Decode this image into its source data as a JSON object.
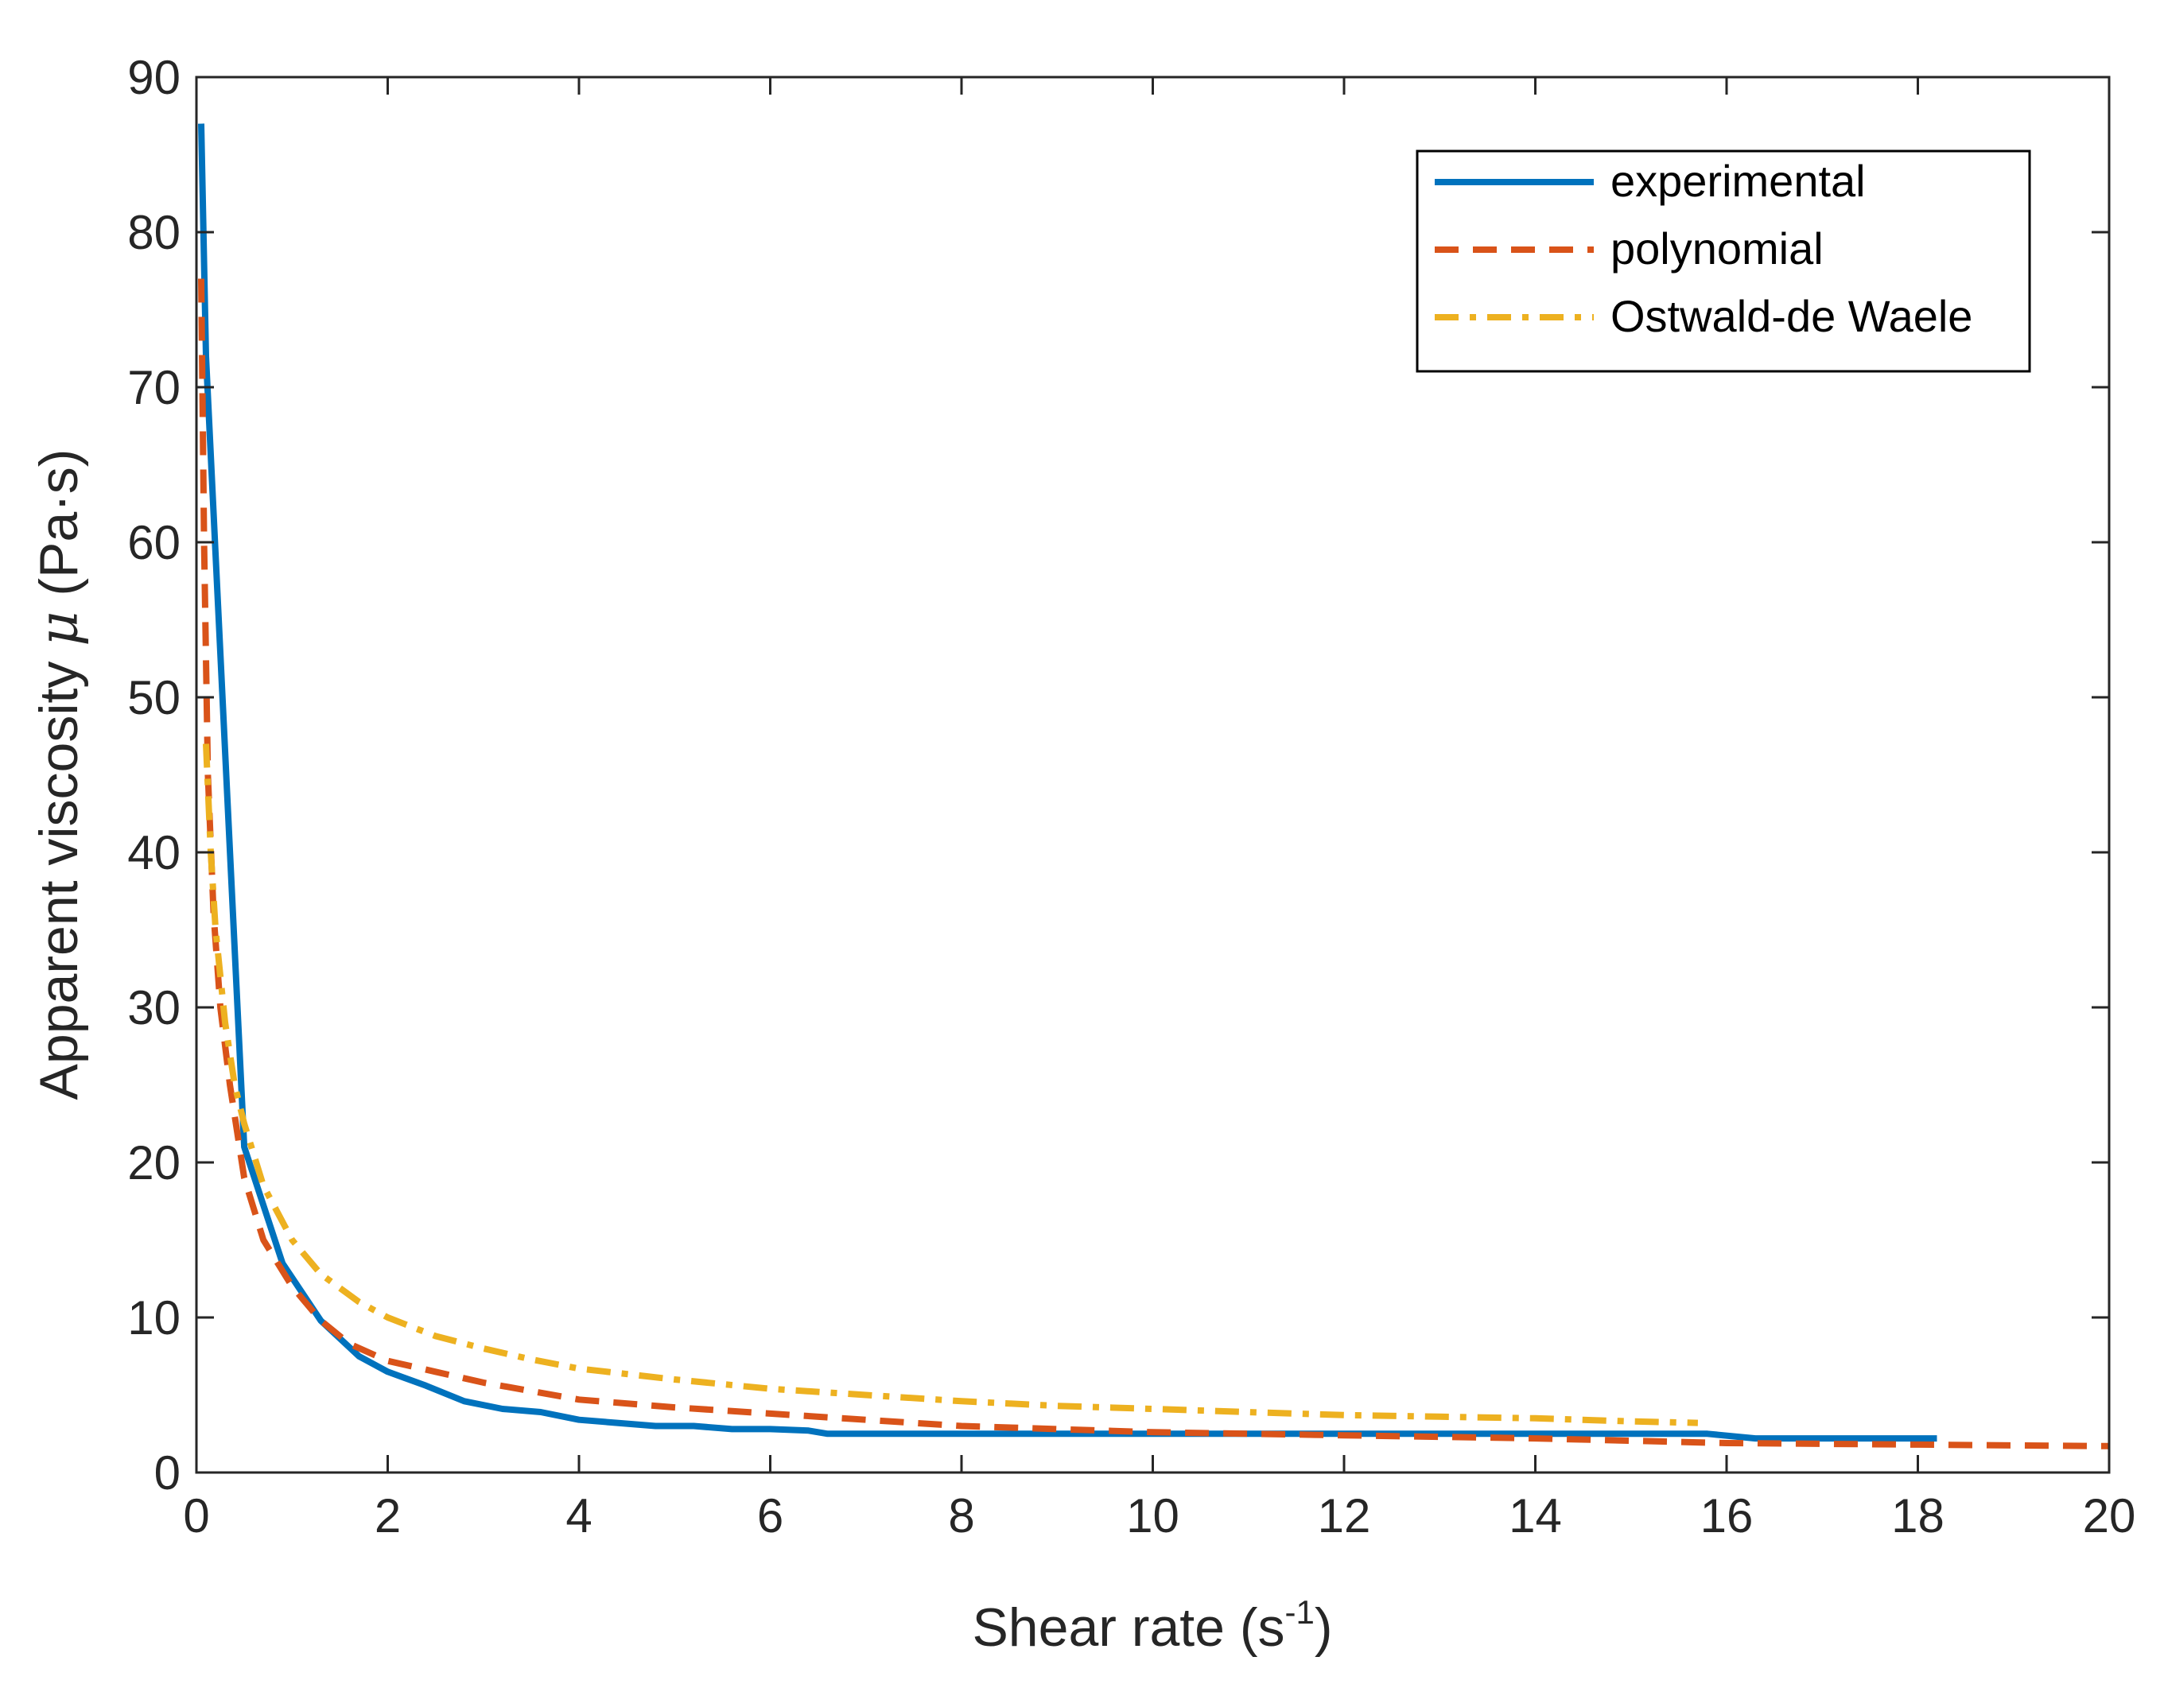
{
  "chart_data": {
    "type": "line",
    "xlabel": "Shear rate (s",
    "xlabel_sup": "-1",
    "xlabel_close": ")",
    "ylabel": "Apparent viscosity ",
    "ylabel_symbol": "μ",
    "ylabel_unit": " (Pa·s)",
    "xlim": [
      0,
      20
    ],
    "ylim": [
      0,
      90
    ],
    "xticks": [
      0,
      2,
      4,
      6,
      8,
      10,
      12,
      14,
      16,
      18,
      20
    ],
    "yticks": [
      0,
      10,
      20,
      30,
      40,
      50,
      60,
      70,
      80,
      90
    ],
    "grid": false,
    "legend_position": "top-right",
    "series": [
      {
        "name": "experimental",
        "color": "#0072BD",
        "style": "solid",
        "x": [
          0.05,
          0.1,
          0.5,
          0.9,
          1.3,
          1.7,
          2.0,
          2.4,
          2.8,
          3.2,
          3.6,
          4.0,
          4.4,
          4.8,
          5.2,
          5.6,
          6.0,
          6.4,
          6.6,
          7.0,
          8.0,
          10.0,
          12.0,
          14.0,
          15.8,
          16.3,
          17.0,
          18.2
        ],
        "y": [
          87,
          72,
          21,
          13.5,
          9.8,
          7.5,
          6.5,
          5.6,
          4.6,
          4.1,
          3.9,
          3.4,
          3.2,
          3.0,
          3.0,
          2.8,
          2.8,
          2.7,
          2.5,
          2.5,
          2.5,
          2.5,
          2.5,
          2.5,
          2.5,
          2.2,
          2.2,
          2.2
        ]
      },
      {
        "name": "polynomial",
        "color": "#D95319",
        "style": "dashed",
        "x": [
          0.05,
          0.08,
          0.12,
          0.18,
          0.25,
          0.35,
          0.5,
          0.7,
          1.0,
          1.3,
          1.6,
          2.0,
          2.5,
          3.0,
          4.0,
          5.0,
          6.0,
          7.0,
          8.0,
          10.0,
          12.0,
          14.0,
          16.0,
          18.0,
          20.0
        ],
        "y": [
          77,
          60,
          45,
          36,
          30,
          25,
          19,
          15,
          12,
          9.8,
          8.3,
          7.2,
          6.5,
          5.8,
          4.7,
          4.2,
          3.8,
          3.4,
          3.0,
          2.6,
          2.4,
          2.2,
          1.9,
          1.8,
          1.7
        ]
      },
      {
        "name": "Ostwald-de Waele",
        "color": "#EDB120",
        "style": "dashdot",
        "x": [
          0.1,
          0.15,
          0.2,
          0.3,
          0.4,
          0.5,
          0.7,
          1.0,
          1.3,
          1.7,
          2.0,
          2.5,
          3.0,
          3.5,
          4.0,
          5.0,
          6.0,
          7.0,
          8.0,
          9.0,
          10.0,
          11.0,
          12.0,
          13.0,
          14.0,
          15.0,
          15.7
        ],
        "y": [
          47,
          40,
          35,
          29,
          25,
          22.5,
          18.5,
          15,
          12.8,
          11,
          10,
          8.8,
          8.0,
          7.3,
          6.7,
          6.0,
          5.4,
          5.0,
          4.6,
          4.3,
          4.1,
          3.9,
          3.7,
          3.6,
          3.5,
          3.3,
          3.2
        ]
      }
    ]
  }
}
